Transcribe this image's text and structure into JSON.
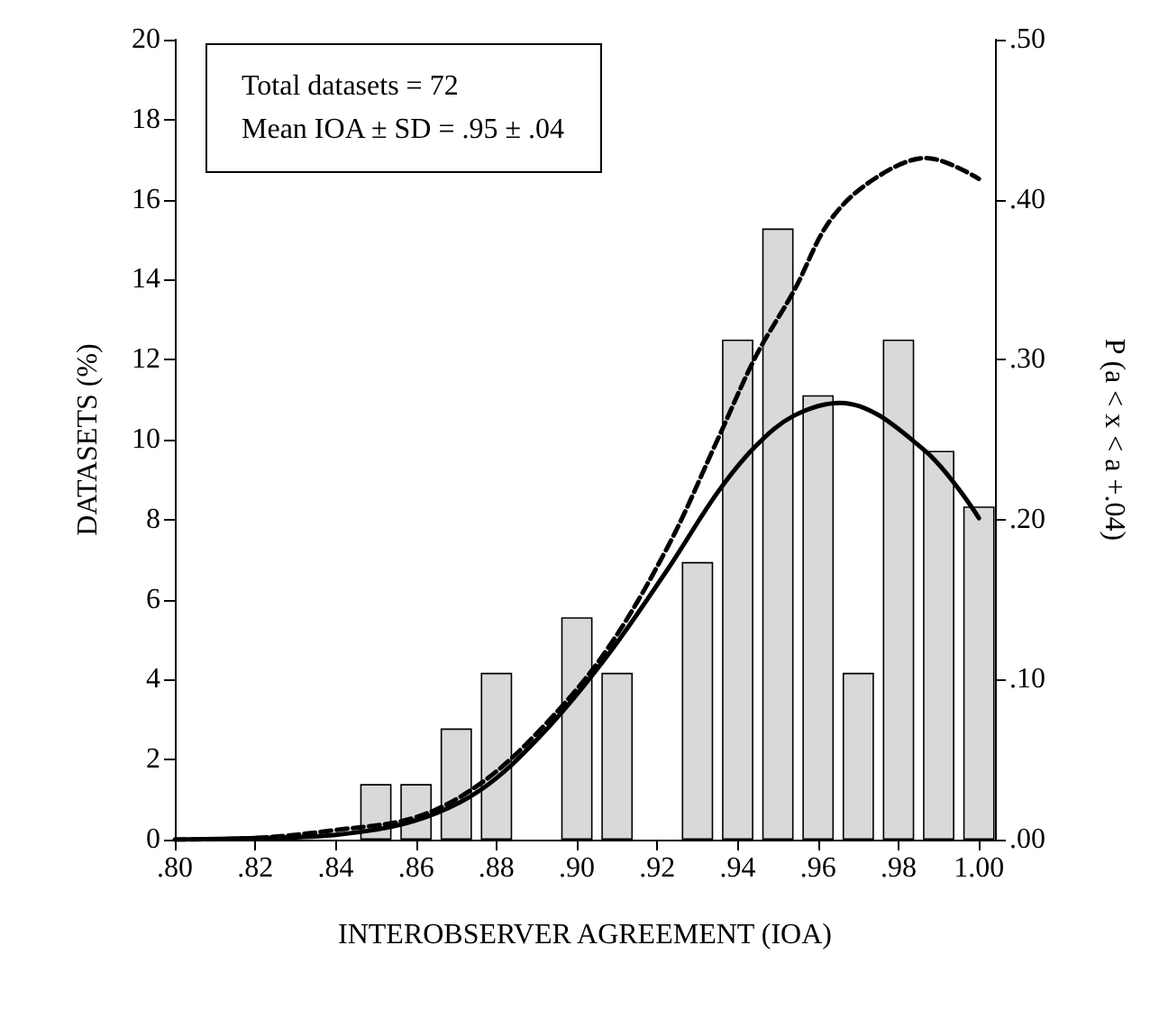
{
  "chart_data": {
    "type": "bar",
    "xlabel": "INTEROBSERVER AGREEMENT (IOA)",
    "ylabel": "DATASETS (%)",
    "y2label": "P (a < x < a +.04)",
    "annotations": [
      "Total datasets = 72",
      "Mean IOA ± SD = .95 ± .04"
    ],
    "series": [
      {
        "color": "#d9d9d9",
        "x": [
          0.85,
          0.86,
          0.87,
          0.88,
          0.9,
          0.91,
          0.93,
          0.94,
          0.95,
          0.96,
          0.97,
          0.98,
          0.99,
          1.0
        ],
        "values": [
          1.39,
          1.39,
          2.78,
          4.17,
          5.56,
          4.17,
          6.94,
          12.5,
          15.28,
          11.11,
          4.17,
          12.5,
          9.72,
          8.33
        ]
      },
      {
        "type": "line",
        "axis": "y2",
        "color": "#000000",
        "line_style": "solid",
        "x": [
          0.8,
          0.82,
          0.84,
          0.86,
          0.876,
          0.891,
          0.907,
          0.9226,
          0.935,
          0.9445,
          0.954,
          0.9655,
          0.9866,
          1.0
        ],
        "values": [
          0.0,
          0.001,
          0.003,
          0.012,
          0.031,
          0.065,
          0.113,
          0.169,
          0.217,
          0.246,
          0.265,
          0.273,
          0.243,
          0.201
        ]
      },
      {
        "type": "line",
        "axis": "y2",
        "color": "#000000",
        "line_style": "dashed",
        "x": [
          0.8,
          0.82,
          0.84,
          0.86,
          0.876,
          0.891,
          0.907,
          0.9226,
          0.935,
          0.9445,
          0.954,
          0.963,
          0.974,
          0.987,
          1.0
        ],
        "values": [
          0.0,
          0.001,
          0.006,
          0.014,
          0.035,
          0.069,
          0.117,
          0.183,
          0.25,
          0.302,
          0.343,
          0.387,
          0.413,
          0.426,
          0.413
        ]
      }
    ],
    "xlim": [
      0.8,
      1.004
    ],
    "xticks": [
      {
        "value": 0.8,
        "label": ".80"
      },
      {
        "value": 0.82,
        "label": ".82"
      },
      {
        "value": 0.84,
        "label": ".84"
      },
      {
        "value": 0.86,
        "label": ".86"
      },
      {
        "value": 0.88,
        "label": ".88"
      },
      {
        "value": 0.9,
        "label": ".90"
      },
      {
        "value": 0.92,
        "label": ".92"
      },
      {
        "value": 0.94,
        "label": ".94"
      },
      {
        "value": 0.96,
        "label": ".96"
      },
      {
        "value": 0.98,
        "label": ".98"
      },
      {
        "value": 1.0,
        "label": "1.00"
      }
    ],
    "ylim": [
      0,
      20
    ],
    "yticks": [
      0,
      2,
      4,
      6,
      8,
      10,
      12,
      14,
      16,
      18,
      20
    ],
    "y2lim": [
      0,
      0.5
    ],
    "y2ticks": [
      {
        "value": 0,
        "label": ".00"
      },
      {
        "value": 0.1,
        "label": ".10"
      },
      {
        "value": 0.2,
        "label": ".20"
      },
      {
        "value": 0.3,
        "label": ".30"
      },
      {
        "value": 0.4,
        "label": ".40"
      },
      {
        "value": 0.5,
        "label": ".50"
      }
    ],
    "grid": false,
    "marker": "none"
  }
}
